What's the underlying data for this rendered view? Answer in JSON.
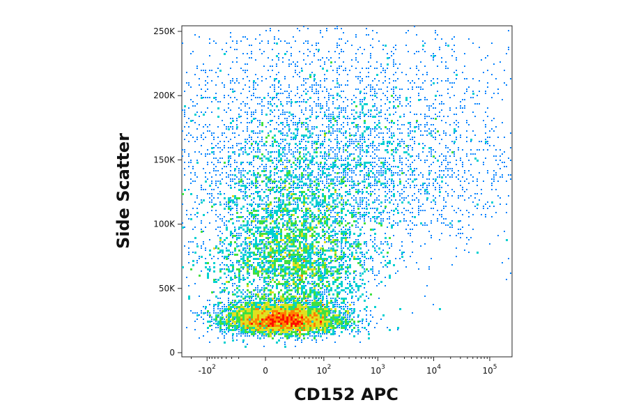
{
  "chart_data": {
    "type": "scatter",
    "subtype": "flow-cytometry density dot plot",
    "xlabel": "CD152 APC",
    "ylabel": "Side Scatter",
    "x_scale": "biexponential",
    "xlim": [
      -300,
      250000
    ],
    "ylim": [
      0,
      262144
    ],
    "x_ticks": [
      {
        "base": "-10",
        "exp": "2",
        "value": -100
      },
      {
        "base": "0",
        "exp": "",
        "value": 0
      },
      {
        "base": "10",
        "exp": "2",
        "value": 100
      },
      {
        "base": "10",
        "exp": "3",
        "value": 1000
      },
      {
        "base": "10",
        "exp": "4",
        "value": 10000
      },
      {
        "base": "10",
        "exp": "5",
        "value": 100000
      }
    ],
    "y_ticks": [
      {
        "label": "0",
        "value": 0
      },
      {
        "label": "50K",
        "value": 50000
      },
      {
        "label": "100K",
        "value": 100000
      },
      {
        "label": "150K",
        "value": 150000
      },
      {
        "label": "200K",
        "value": 200000
      },
      {
        "label": "250K",
        "value": 250000
      }
    ],
    "density_colors": [
      "#1a1aff",
      "#0080ff",
      "#00d0d0",
      "#40e040",
      "#e0e020",
      "#ff8000",
      "#ff1000"
    ],
    "populations": [
      {
        "x_center": 10,
        "y_center": 22000,
        "x_spread": 25,
        "y_spread": 9000,
        "count": 5000
      },
      {
        "x_center": 20,
        "y_center": 60000,
        "x_spread": 40,
        "y_spread": 40000,
        "count": 5000
      },
      {
        "x_center": 150,
        "y_center": 130000,
        "x_spread": 400,
        "y_spread": 60000,
        "count": 4500
      }
    ],
    "grid": false,
    "legend": "none"
  }
}
